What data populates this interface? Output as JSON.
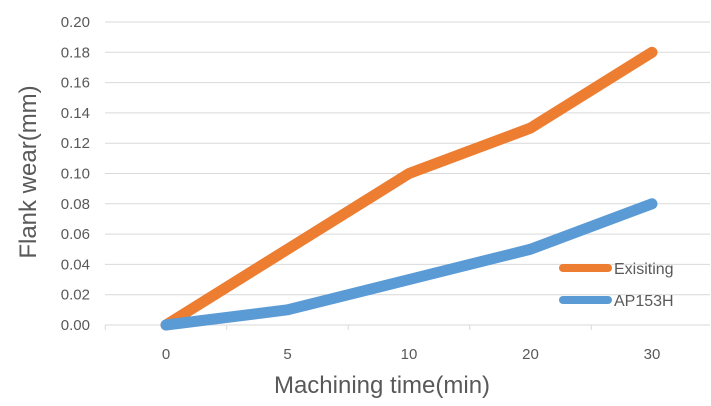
{
  "chart_data": {
    "type": "line",
    "categories": [
      "0",
      "5",
      "10",
      "20",
      "30"
    ],
    "series": [
      {
        "name": "Exisiting",
        "values": [
          0.0,
          0.05,
          0.1,
          0.13,
          0.18
        ],
        "color": "#ED7D31"
      },
      {
        "name": "AP153H",
        "values": [
          0.0,
          0.01,
          0.03,
          0.05,
          0.08
        ],
        "color": "#5B9BD5"
      }
    ],
    "yticks": [
      "0.00",
      "0.02",
      "0.04",
      "0.06",
      "0.08",
      "0.10",
      "0.12",
      "0.14",
      "0.16",
      "0.18",
      "0.20"
    ],
    "xlabel": "Machining time(min)",
    "ylabel": "Flank wear(mm)",
    "ylim": [
      0,
      0.2
    ],
    "grid": true,
    "legend_position": "right"
  }
}
